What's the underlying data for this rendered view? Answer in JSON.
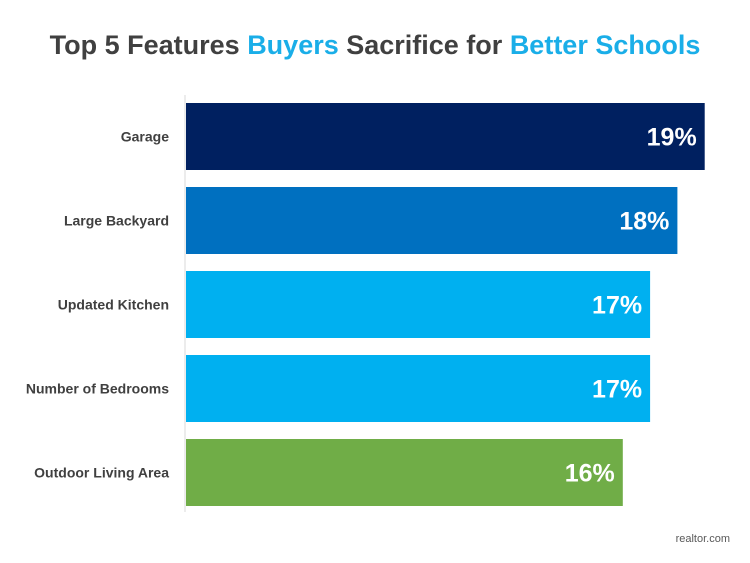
{
  "title": {
    "part1": "Top 5 Features ",
    "part2": "Buyers",
    "part3": " Sacrifice for ",
    "part4": "Better Schools",
    "highlight_color": "#1aaee8",
    "text_color": "#404040"
  },
  "source": "realtor.com",
  "chart_data": {
    "type": "bar",
    "orientation": "horizontal",
    "title": "Top 5 Features Buyers Sacrifice for Better Schools",
    "categories": [
      "Garage",
      "Large Backyard",
      "Updated Kitchen",
      "Number of Bedrooms",
      "Outdoor Living Area"
    ],
    "values": [
      19,
      18,
      17,
      17,
      16
    ],
    "value_labels": [
      "19%",
      "18%",
      "17%",
      "17%",
      "16%"
    ],
    "colors": [
      "#002060",
      "#0070c0",
      "#00b0f0",
      "#00b0f0",
      "#70ad47"
    ],
    "xlim": [
      0,
      20
    ],
    "grid": false,
    "legend": "none"
  }
}
